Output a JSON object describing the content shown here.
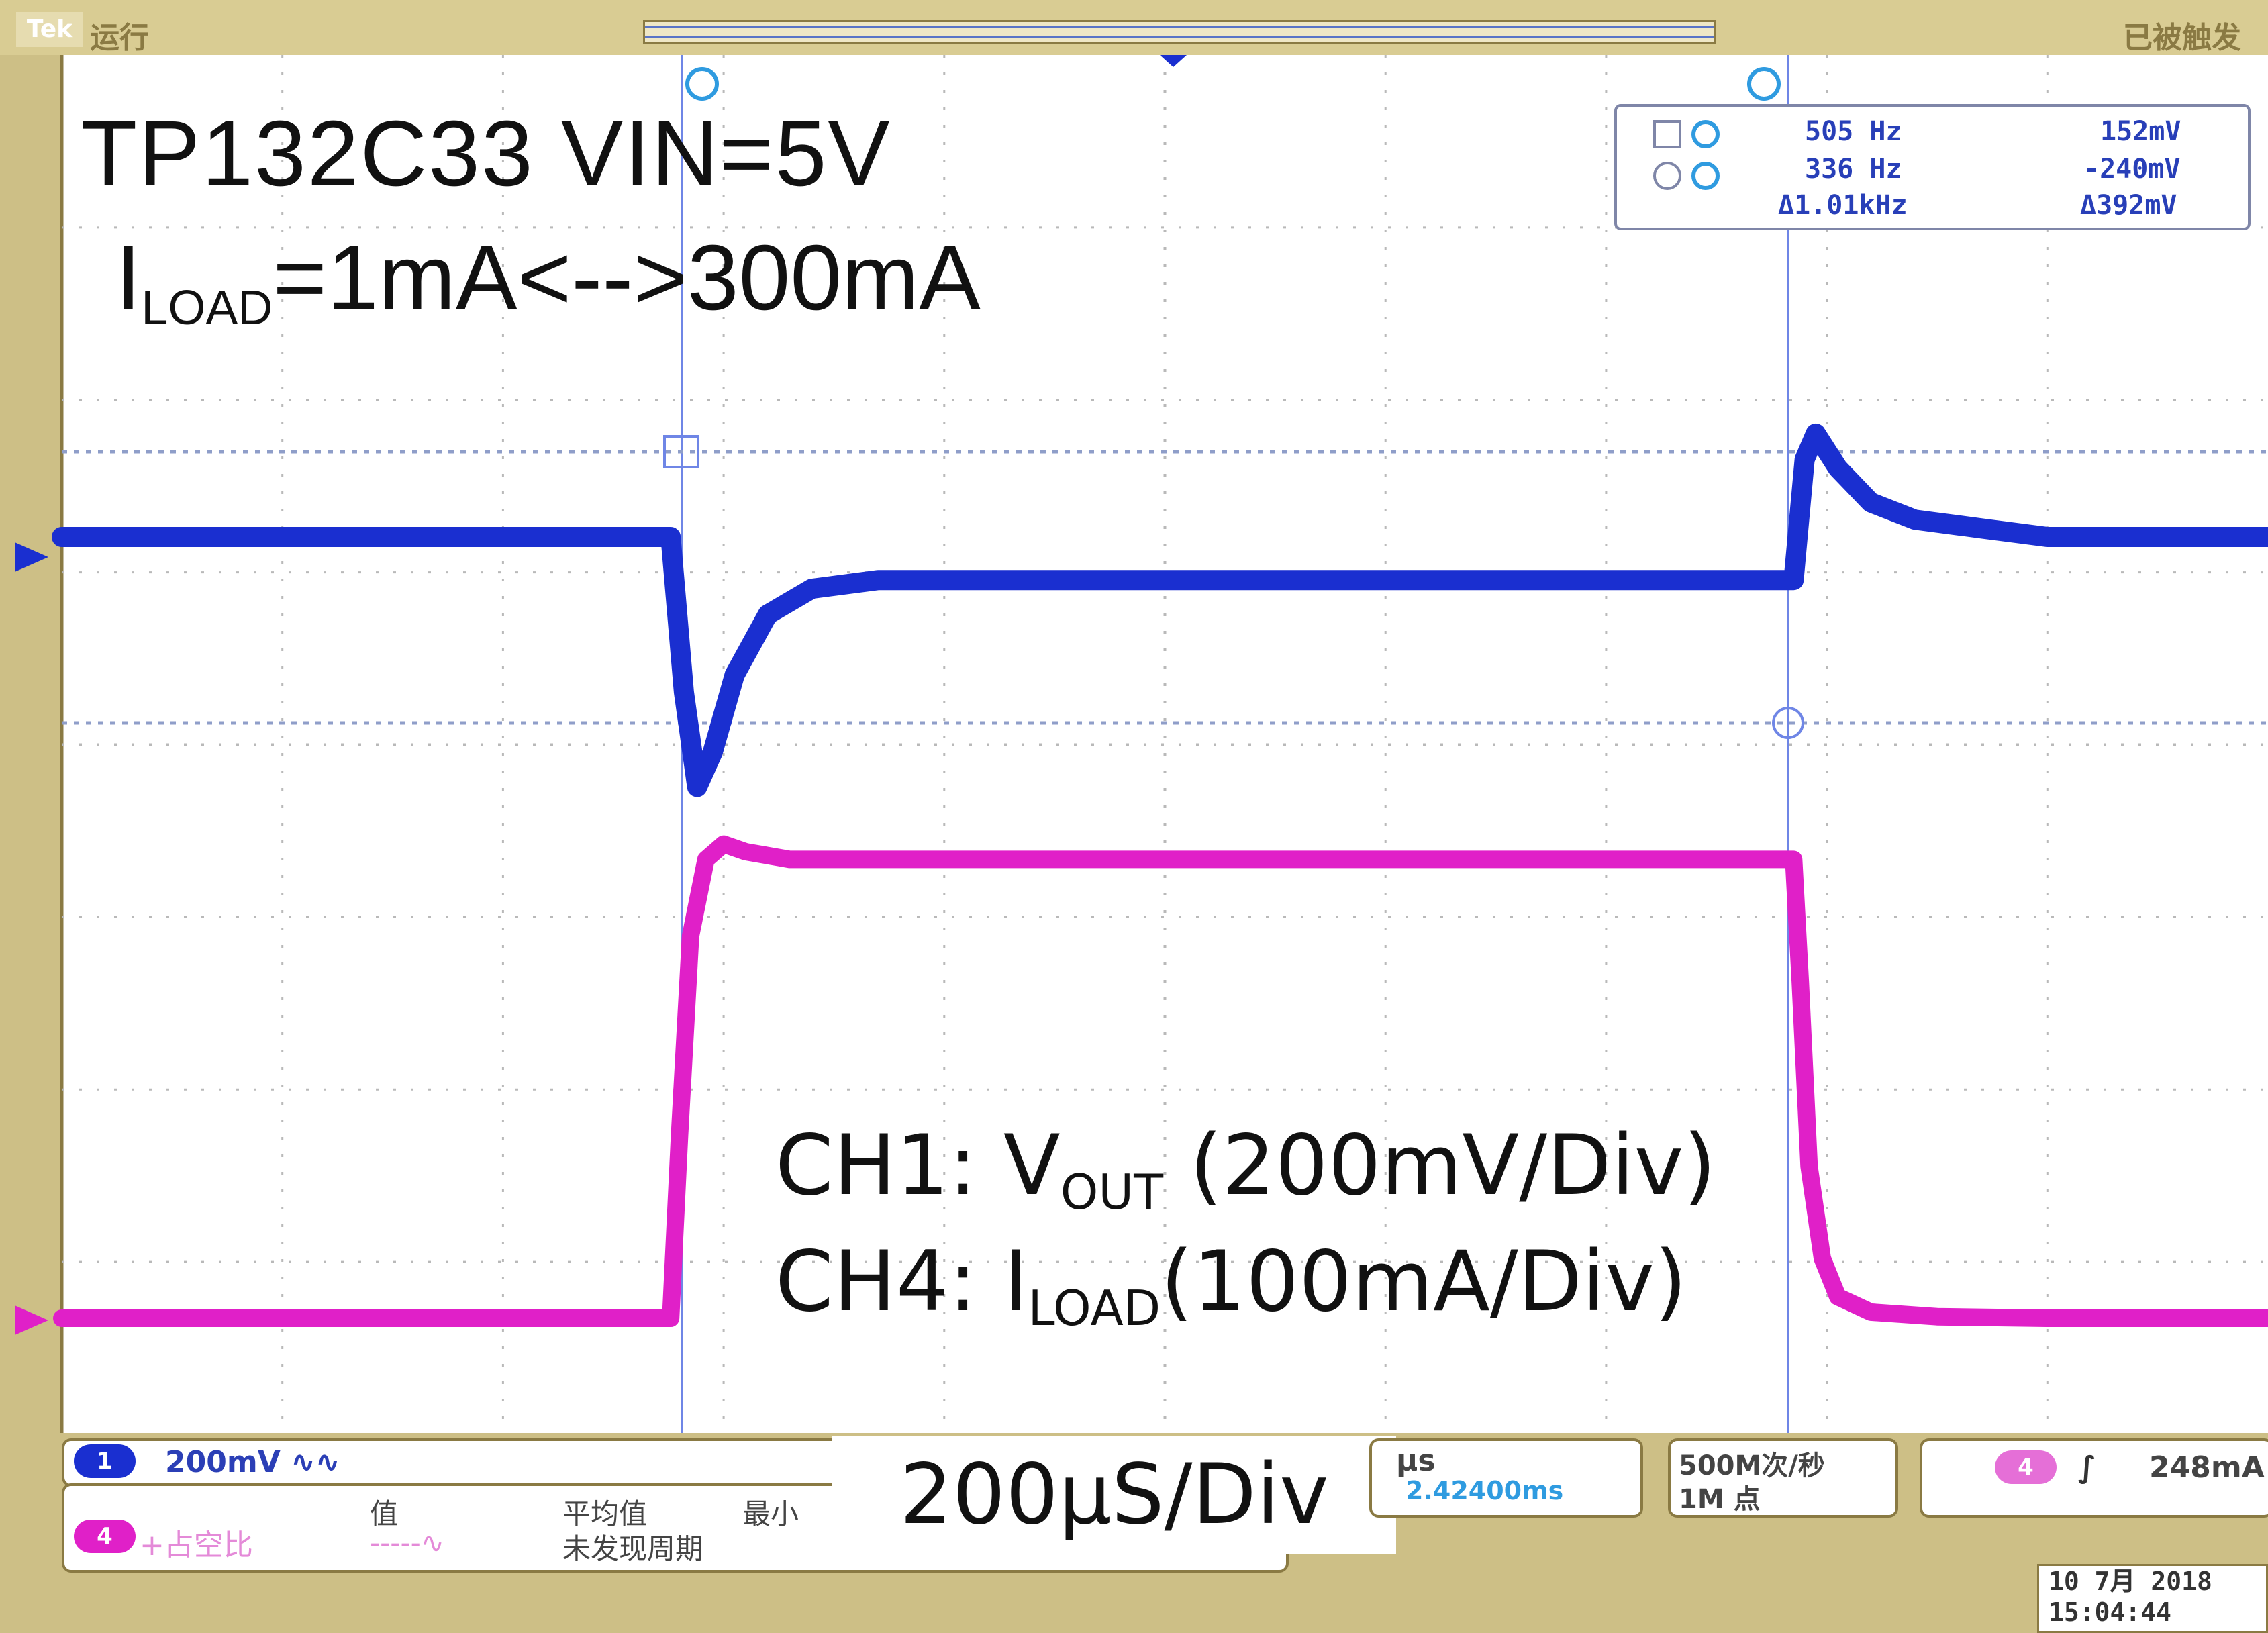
{
  "header": {
    "run_state": "运行",
    "trigger_state": "已被触发"
  },
  "annotations": {
    "title": "TP132C33  VIN=5V",
    "load_prefix": "I",
    "load_sub": "LOAD",
    "load_suffix": "=1mA<-->300mA",
    "ch1_prefix": "CH1: V",
    "ch1_sub": "OUT",
    "ch1_suffix": " (200mV/Div)",
    "ch4_prefix": "CH4:  I",
    "ch4_sub": "LOAD",
    "ch4_suffix": "(100mA/Div)",
    "timebase": "200µS/Div"
  },
  "cursor_readout": {
    "a_freq": "505 Hz",
    "a_val": "152mV",
    "b_freq": "336 Hz",
    "b_val": "-240mV",
    "delta_freq": "Δ1.01kHz",
    "delta_val": "Δ392mV"
  },
  "status_bar": {
    "ch1_badge": "1",
    "ch1_scale": "200mV ∿∿",
    "ch4_badge": "4",
    "ch4_meas": "+占空比",
    "meas_value_head": "值",
    "meas_mean_head": "平均值",
    "meas_min_head": "最小",
    "meas_value": "-----∿",
    "meas_note": "未发现周期",
    "time_unit": "µs",
    "time_offset": "2.42400ms",
    "sample_rate": "500M次/秒",
    "record_length": "1M 点",
    "trig_badge": "4",
    "trig_slope": "∫",
    "trig_level": "248mA",
    "date": "10 7月  2018",
    "time": "15:04:44"
  },
  "colors": {
    "ch1": "#1a2fd0",
    "ch4": "#e020c8",
    "grid": "#b9b9b9",
    "cursor": "#6f86e6",
    "bezel": "#cdbf86"
  },
  "chart_data": {
    "type": "line",
    "title": "",
    "xlabel": "",
    "ylabel": "",
    "grid": true,
    "horizontal_divisions": 10,
    "vertical_divisions": 8,
    "series": [
      {
        "name": "CH1",
        "x": [
          0,
          0.5,
          1.0,
          1.5,
          2.0,
          2.5,
          2.76,
          2.82,
          2.88,
          2.95,
          3.05,
          3.2,
          3.4,
          3.7,
          4.0,
          4.5,
          5.0,
          5.5,
          6.0,
          6.5,
          7.0,
          7.5,
          7.85,
          7.9,
          7.95,
          8.05,
          8.2,
          8.4,
          8.7,
          9.0,
          9.5,
          10.0
        ],
        "y": [
          3.25,
          3.25,
          3.25,
          3.25,
          3.25,
          3.25,
          3.25,
          3.07,
          2.96,
          3.0,
          3.09,
          3.16,
          3.19,
          3.2,
          3.2,
          3.2,
          3.2,
          3.2,
          3.2,
          3.2,
          3.2,
          3.2,
          3.2,
          3.34,
          3.37,
          3.33,
          3.29,
          3.27,
          3.26,
          3.25,
          3.25,
          3.25
        ]
      },
      {
        "name": "CH4",
        "x": [
          0,
          0.5,
          1.0,
          1.5,
          2.0,
          2.5,
          2.76,
          2.8,
          2.85,
          2.92,
          3.0,
          3.1,
          3.3,
          3.6,
          4.0,
          4.5,
          5.0,
          5.5,
          6.0,
          6.5,
          7.0,
          7.5,
          7.85,
          7.88,
          7.92,
          7.98,
          8.05,
          8.2,
          8.5,
          9.0,
          9.5,
          10.0
        ],
        "y": [
          0.001,
          0.001,
          0.001,
          0.001,
          0.001,
          0.001,
          0.001,
          0.12,
          0.25,
          0.3,
          0.31,
          0.305,
          0.3,
          0.3,
          0.3,
          0.3,
          0.3,
          0.3,
          0.3,
          0.3,
          0.3,
          0.3,
          0.3,
          0.22,
          0.1,
          0.04,
          0.015,
          0.005,
          0.002,
          0.001,
          0.001,
          0.001
        ]
      }
    ]
  }
}
